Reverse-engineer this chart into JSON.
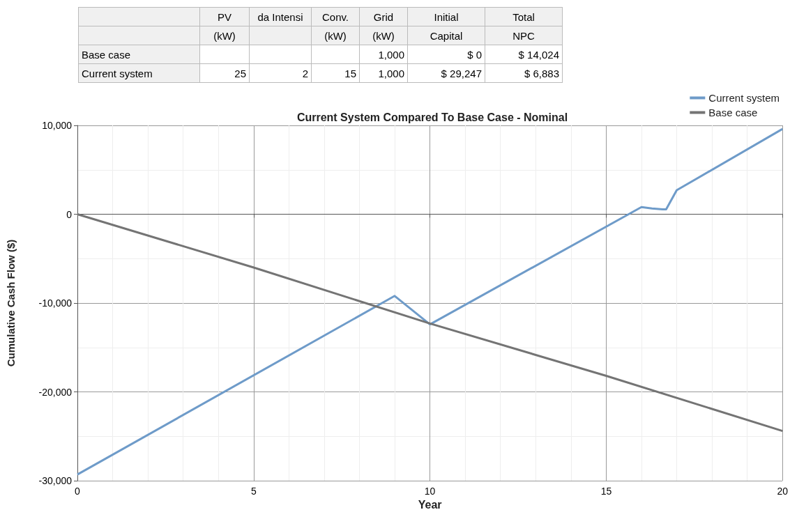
{
  "chart_data": {
    "type": "line",
    "title": "Current System Compared To Base Case - Nominal",
    "xlabel": "Year",
    "ylabel": "Cumulative Cash Flow ($)",
    "annotations": [
      null,
      "PV",
      "da Intensi",
      "Conv.",
      "Grid",
      "Initial",
      "Total",
      null,
      "(kW)",
      null,
      "(kW)",
      "(kW)",
      "Capital",
      "NPC",
      "Base case",
      null,
      null,
      null,
      "1,000",
      "$ 0",
      "$ 14,024",
      "Current system",
      "25",
      "2",
      "15",
      "1,000",
      "$ 29,247",
      "$ 6,883"
    ],
    "series": [
      {
        "name": "Current system",
        "color": "#6e9bc9",
        "x": [
          0,
          9,
          10,
          16,
          16.3,
          16.6,
          16.7,
          17,
          20
        ],
        "values": [
          -29300,
          -9200,
          -12400,
          800,
          650,
          550,
          550,
          2700,
          9600
        ]
      },
      {
        "name": "Base case",
        "color": "#747474",
        "x": [
          0,
          5,
          10,
          15,
          20
        ],
        "values": [
          0,
          -6000,
          -12300,
          -18200,
          -24400
        ]
      }
    ],
    "xlim": [
      0,
      20
    ],
    "xticks": [
      0,
      5,
      10,
      15,
      20
    ],
    "ylim": [
      -30000,
      10000
    ],
    "yticks": [
      {
        "value": -30000,
        "label": "-30,000"
      },
      {
        "value": -20000,
        "label": "-20,000"
      },
      {
        "value": -10000,
        "label": "-10,000"
      },
      0,
      {
        "value": 10000,
        "label": "10,000"
      }
    ],
    "grid": true,
    "legend": "top right",
    "marker": "none",
    "line_style": "solid"
  }
}
